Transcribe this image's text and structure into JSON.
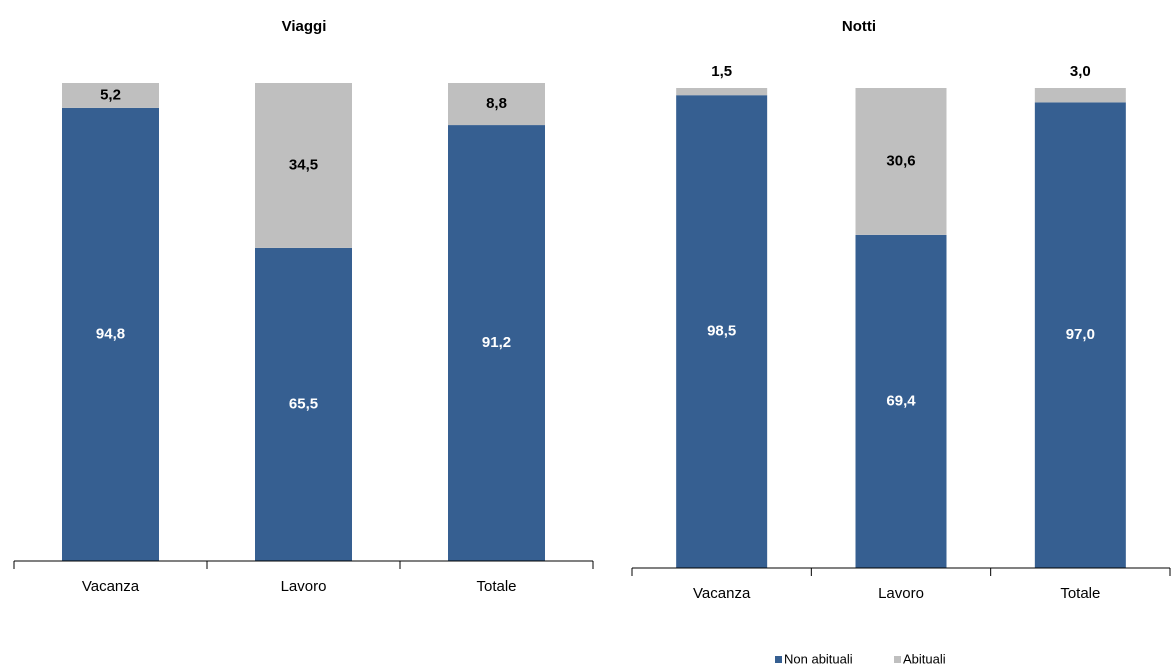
{
  "chart_data": [
    {
      "type": "bar",
      "stacked": true,
      "title": "Viaggi",
      "categories": [
        "Vacanza",
        "Lavoro",
        "Totale"
      ],
      "ylim": [
        0,
        100
      ],
      "series": [
        {
          "name": "Non abituali",
          "color": "#365f91",
          "values": [
            94.8,
            65.5,
            91.2
          ],
          "value_labels": [
            "94,8",
            "65,5",
            "91,2"
          ]
        },
        {
          "name": "Abituali",
          "color": "#bfbfbf",
          "values": [
            5.2,
            34.5,
            8.8
          ],
          "value_labels": [
            "5,2",
            "34,5",
            "8,8"
          ]
        }
      ]
    },
    {
      "type": "bar",
      "stacked": true,
      "title": "Notti",
      "categories": [
        "Vacanza",
        "Lavoro",
        "Totale"
      ],
      "ylim": [
        0,
        100
      ],
      "series": [
        {
          "name": "Non abituali",
          "color": "#365f91",
          "values": [
            98.5,
            69.4,
            97.0
          ],
          "value_labels": [
            "98,5",
            "69,4",
            "97,0"
          ]
        },
        {
          "name": "Abituali",
          "color": "#bfbfbf",
          "values": [
            1.5,
            30.6,
            3.0
          ],
          "value_labels": [
            "1,5",
            "30,6",
            "3,0"
          ]
        }
      ]
    }
  ]
}
